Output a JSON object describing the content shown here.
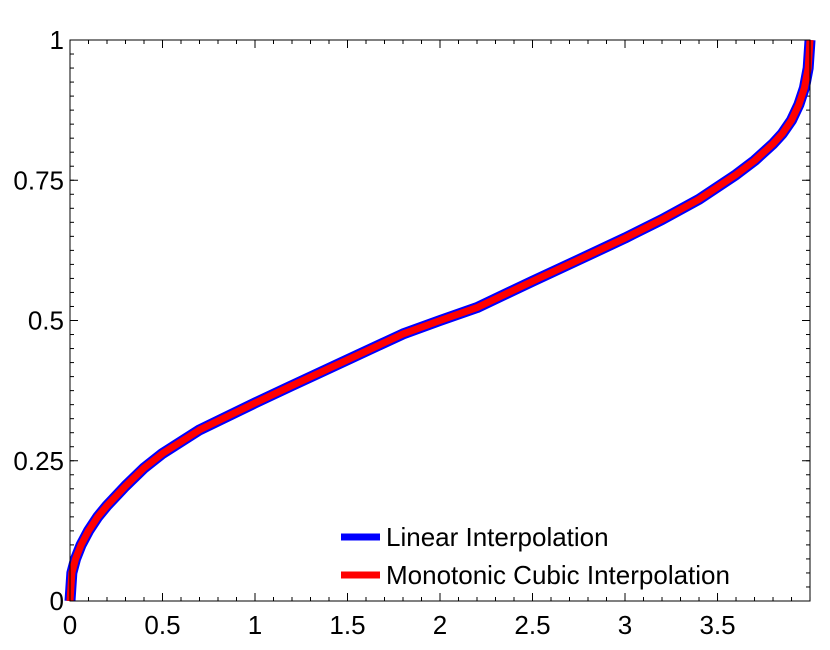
{
  "chart_data": {
    "type": "line",
    "xlim": [
      0,
      3.9999
    ],
    "ylim": [
      0,
      1
    ],
    "x_ticks": [
      0,
      0.5,
      1,
      1.5,
      2,
      2.5,
      3,
      3.5
    ],
    "x_tick_labels": [
      "0",
      "0.5",
      "1",
      "1.5",
      "2",
      "2.5",
      "3",
      "3.5"
    ],
    "y_ticks": [
      0,
      0.25,
      0.5,
      0.75,
      1
    ],
    "y_tick_labels": [
      "0",
      "0.25",
      "0.5",
      "0.75",
      "1"
    ],
    "grid": false,
    "legend_position": "bottom-right",
    "series": [
      {
        "name": "Linear Interpolation",
        "color": "#0000ff",
        "x": [
          0,
          0.01,
          0.03,
          0.06,
          0.1,
          0.15,
          0.2,
          0.3,
          0.4,
          0.5,
          0.7,
          1.0,
          1.2,
          1.5,
          1.8,
          2.0,
          2.2,
          2.5,
          2.8,
          3.0,
          3.2,
          3.4,
          3.6,
          3.7,
          3.8,
          3.85,
          3.9,
          3.94,
          3.97,
          3.99,
          4.0
        ],
        "y": [
          0,
          0.05,
          0.075,
          0.1,
          0.125,
          0.15,
          0.17,
          0.205,
          0.237,
          0.263,
          0.305,
          0.353,
          0.384,
          0.43,
          0.476,
          0.5,
          0.523,
          0.57,
          0.616,
          0.647,
          0.68,
          0.716,
          0.76,
          0.785,
          0.815,
          0.833,
          0.857,
          0.885,
          0.915,
          0.95,
          1.0
        ]
      },
      {
        "name": "Monotonic Cubic Interpolation",
        "color": "#ff0000",
        "x": [
          0,
          0.01,
          0.03,
          0.06,
          0.1,
          0.15,
          0.2,
          0.3,
          0.4,
          0.5,
          0.7,
          1.0,
          1.2,
          1.5,
          1.8,
          2.0,
          2.2,
          2.5,
          2.8,
          3.0,
          3.2,
          3.4,
          3.6,
          3.7,
          3.8,
          3.85,
          3.9,
          3.94,
          3.97,
          3.99,
          4.0
        ],
        "y": [
          0,
          0.05,
          0.075,
          0.1,
          0.125,
          0.15,
          0.17,
          0.205,
          0.237,
          0.263,
          0.305,
          0.353,
          0.384,
          0.43,
          0.476,
          0.5,
          0.523,
          0.57,
          0.616,
          0.647,
          0.68,
          0.716,
          0.76,
          0.785,
          0.815,
          0.833,
          0.857,
          0.885,
          0.915,
          0.95,
          1.0
        ]
      }
    ]
  }
}
